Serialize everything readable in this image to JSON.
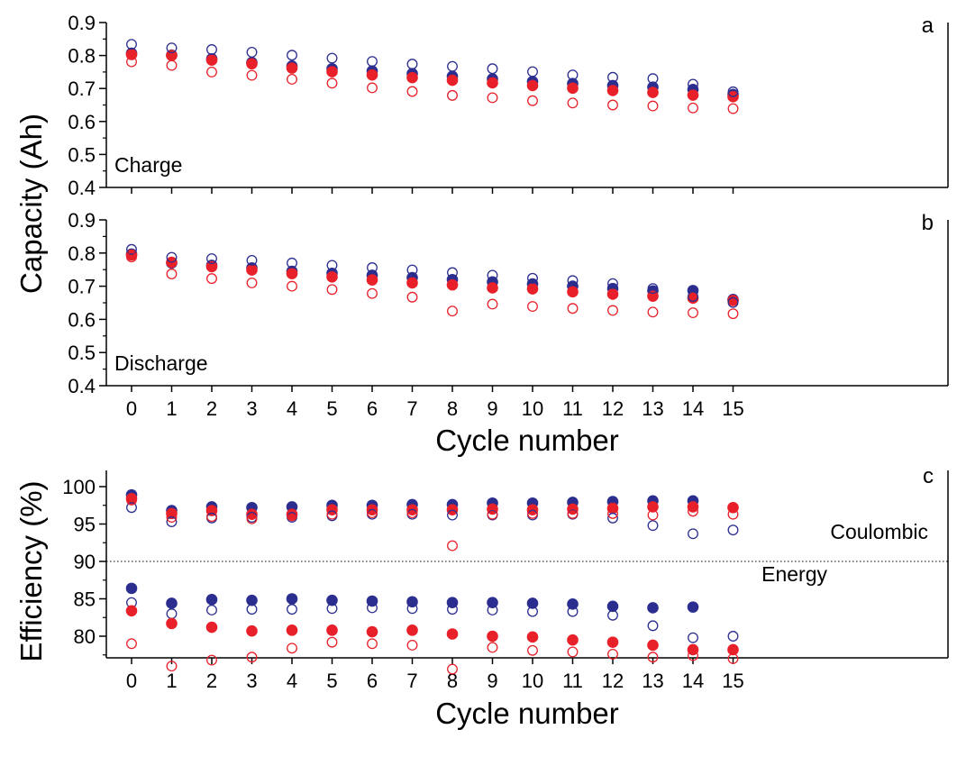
{
  "chart_data": [
    {
      "panel": "a",
      "type": "scatter",
      "annotation": "Charge",
      "ylim": [
        0.4,
        0.9
      ],
      "y_ticks": [
        "0.4",
        "0.5",
        "0.6",
        "0.7",
        "0.8",
        "0.9"
      ],
      "x": [
        0,
        1,
        2,
        3,
        4,
        5,
        6,
        7,
        8,
        9,
        10,
        11,
        12,
        13,
        14,
        15
      ],
      "series": [
        {
          "color": "#2b2e8f",
          "marker": "filled",
          "values": [
            0.807,
            0.801,
            0.79,
            0.779,
            0.768,
            0.76,
            0.753,
            0.745,
            0.737,
            0.729,
            0.721,
            0.715,
            0.709,
            0.704,
            0.697,
            0.682
          ]
        },
        {
          "color": "#e8202a",
          "marker": "filled",
          "values": [
            0.803,
            0.8,
            0.786,
            0.775,
            0.762,
            0.751,
            0.741,
            0.733,
            0.725,
            0.717,
            0.709,
            0.701,
            0.694,
            0.688,
            0.68,
            0.675
          ]
        },
        {
          "color": "#2b2e8f",
          "marker": "open",
          "values": [
            0.834,
            0.823,
            0.818,
            0.81,
            0.801,
            0.792,
            0.782,
            0.774,
            0.767,
            0.76,
            0.751,
            0.741,
            0.734,
            0.73,
            0.713,
            0.69
          ]
        },
        {
          "color": "#e8202a",
          "marker": "open",
          "values": [
            0.781,
            0.77,
            0.75,
            0.74,
            0.728,
            0.716,
            0.702,
            0.691,
            0.679,
            0.672,
            0.663,
            0.656,
            0.65,
            0.647,
            0.641,
            0.639
          ]
        }
      ]
    },
    {
      "panel": "b",
      "type": "scatter",
      "annotation": "Discharge",
      "ylim": [
        0.4,
        0.9
      ],
      "y_ticks": [
        "0.4",
        "0.5",
        "0.6",
        "0.7",
        "0.8",
        "0.9"
      ],
      "x": [
        0,
        1,
        2,
        3,
        4,
        5,
        6,
        7,
        8,
        9,
        10,
        11,
        12,
        13,
        14,
        15
      ],
      "series": [
        {
          "color": "#2b2e8f",
          "marker": "filled",
          "values": [
            0.797,
            0.77,
            0.763,
            0.755,
            0.745,
            0.739,
            0.733,
            0.726,
            0.72,
            0.713,
            0.707,
            0.7,
            0.693,
            0.686,
            0.687,
            0.66
          ]
        },
        {
          "color": "#e8202a",
          "marker": "filled",
          "values": [
            0.794,
            0.772,
            0.759,
            0.749,
            0.738,
            0.728,
            0.719,
            0.71,
            0.704,
            0.695,
            0.692,
            0.683,
            0.676,
            0.67,
            0.664,
            0.657
          ]
        },
        {
          "color": "#2b2e8f",
          "marker": "open",
          "values": [
            0.811,
            0.787,
            0.783,
            0.778,
            0.77,
            0.763,
            0.756,
            0.749,
            0.741,
            0.733,
            0.724,
            0.717,
            0.708,
            0.693,
            0.669,
            0.651
          ]
        },
        {
          "color": "#e8202a",
          "marker": "open",
          "values": [
            0.788,
            0.737,
            0.723,
            0.71,
            0.7,
            0.69,
            0.678,
            0.667,
            0.625,
            0.646,
            0.639,
            0.633,
            0.627,
            0.622,
            0.62,
            0.617
          ]
        }
      ],
      "xlabel": "Cycle number",
      "x_ticks": [
        "0",
        "1",
        "2",
        "3",
        "4",
        "5",
        "6",
        "7",
        "8",
        "9",
        "10",
        "11",
        "12",
        "13",
        "14",
        "15"
      ]
    },
    {
      "panel": "c",
      "type": "scatter",
      "ylabel": "Efficiency (%)",
      "xlabel": "Cycle number",
      "ylim": [
        75.6,
        100.7
      ],
      "y_ticks": [
        "80",
        "85",
        "90",
        "95",
        "100"
      ],
      "x_ticks": [
        "0",
        "1",
        "2",
        "3",
        "4",
        "5",
        "6",
        "7",
        "8",
        "9",
        "10",
        "11",
        "12",
        "13",
        "14",
        "15"
      ],
      "reference_line": 90,
      "annotations": [
        "Coulombic",
        "Energy"
      ],
      "x": [
        0,
        1,
        2,
        3,
        4,
        5,
        6,
        7,
        8,
        9,
        10,
        11,
        12,
        13,
        14,
        15
      ],
      "series": [
        {
          "color": "#2b2e8f",
          "marker": "filled",
          "values": [
            98.9,
            96.8,
            97.3,
            97.2,
            97.3,
            97.5,
            97.5,
            97.6,
            97.6,
            97.8,
            97.8,
            97.9,
            98.0,
            98.1,
            98.1,
            null
          ]
        },
        {
          "color": "#e8202a",
          "marker": "filled",
          "values": [
            98.4,
            96.4,
            96.8,
            96.3,
            96.3,
            96.9,
            96.9,
            96.9,
            96.9,
            97.0,
            96.9,
            97.0,
            97.1,
            97.3,
            97.3,
            97.2
          ]
        },
        {
          "color": "#2b2e8f",
          "marker": "open",
          "values": [
            97.2,
            95.3,
            95.8,
            95.9,
            95.9,
            96.1,
            96.3,
            96.3,
            96.2,
            96.2,
            96.2,
            96.3,
            95.8,
            94.8,
            93.7,
            94.2
          ]
        },
        {
          "color": "#e8202a",
          "marker": "open",
          "values": [
            98.2,
            95.9,
            96.0,
            95.7,
            96.1,
            96.3,
            96.5,
            96.5,
            92.1,
            96.3,
            96.4,
            96.4,
            96.4,
            96.2,
            96.7,
            96.3
          ]
        },
        {
          "color": "#2b2e8f",
          "marker": "filled",
          "values": [
            86.4,
            84.4,
            84.9,
            84.8,
            85.0,
            84.8,
            84.7,
            84.6,
            84.5,
            84.5,
            84.4,
            84.3,
            84.0,
            83.8,
            83.9,
            null
          ]
        },
        {
          "color": "#2b2e8f",
          "marker": "open",
          "values": [
            84.5,
            83.0,
            83.5,
            83.6,
            83.6,
            83.7,
            83.8,
            83.7,
            83.6,
            83.5,
            83.3,
            83.3,
            82.8,
            81.4,
            79.8,
            80.0
          ]
        },
        {
          "color": "#e8202a",
          "marker": "filled",
          "values": [
            83.4,
            81.7,
            81.2,
            80.7,
            80.8,
            80.8,
            80.6,
            80.8,
            80.3,
            80.0,
            79.9,
            79.5,
            79.2,
            78.8,
            78.2,
            78.2
          ]
        },
        {
          "color": "#e8202a",
          "marker": "open",
          "values": [
            79.0,
            76.0,
            76.8,
            77.2,
            78.4,
            79.2,
            79.0,
            78.8,
            75.6,
            78.5,
            78.1,
            77.9,
            77.6,
            77.2,
            77.4,
            77.0
          ]
        }
      ]
    }
  ],
  "figure": {
    "ylabel_top": "Capacity (Ah)"
  }
}
